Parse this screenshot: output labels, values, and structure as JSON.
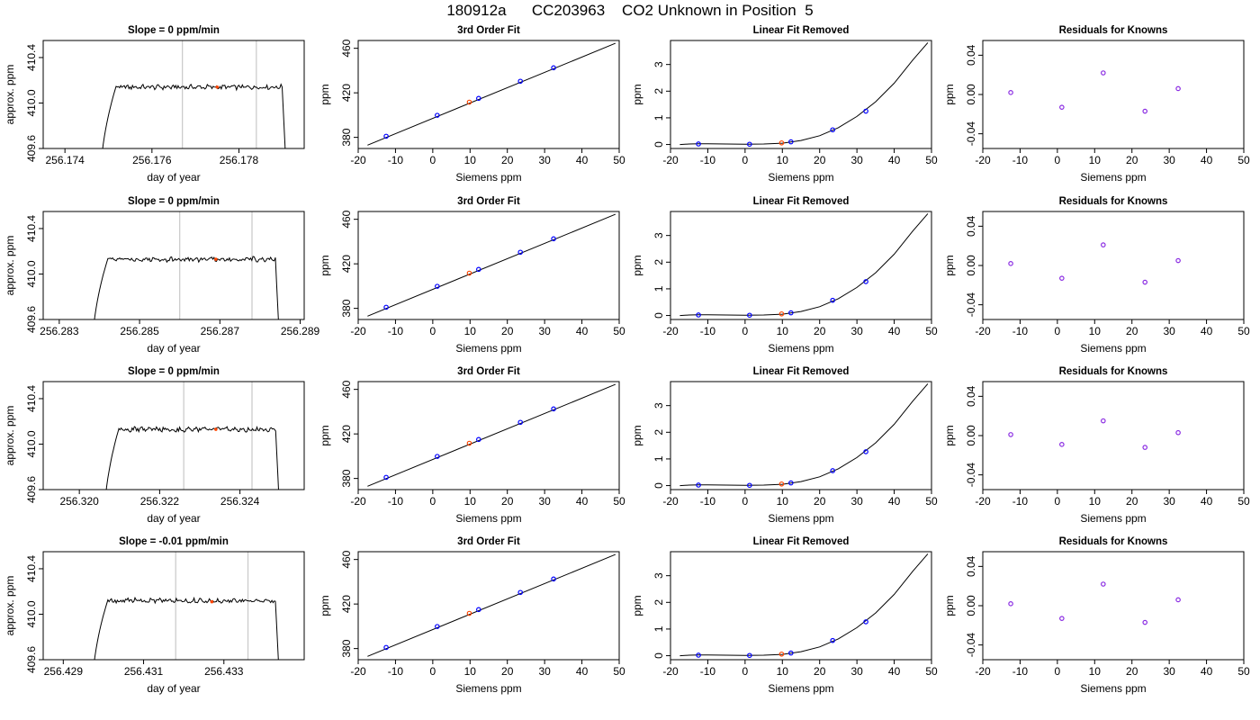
{
  "page_title": "180912a      CC203963    CO2 Unknown in Position  5",
  "chart_data": [
    {
      "type": "line",
      "title": "Slope =  0  ppm/min",
      "xlabel": "day of year",
      "ylabel": "approx. ppm",
      "xlim": [
        256.1735,
        256.1795
      ],
      "ylim": [
        409.6,
        410.55
      ],
      "xticks": [
        256.174,
        256.176,
        256.178
      ],
      "xticklabels": [
        "256.174",
        "256.176",
        "256.178"
      ],
      "yticks": [
        409.6,
        410.0,
        410.4
      ],
      "yticklabels": [
        "409.6",
        "410.0",
        "410.4"
      ],
      "start": 256.1748,
      "end": 256.1791,
      "plateau": 410.14,
      "vlines": [
        256.1767,
        256.1784
      ],
      "marker": {
        "x": 256.1775,
        "y": 410.14
      }
    },
    {
      "type": "line",
      "title": "3rd Order Fit",
      "xlabel": "Siemens ppm",
      "ylabel": "ppm",
      "xlim": [
        -20,
        50
      ],
      "ylim": [
        370,
        467
      ],
      "xticks": [
        -20,
        -10,
        0,
        10,
        20,
        30,
        40,
        50
      ],
      "yticks": [
        380,
        420,
        460
      ],
      "line": {
        "x": [
          -17.5,
          49
        ],
        "y": [
          373,
          464.5
        ]
      },
      "knowns": {
        "x": [
          -12.5,
          1.2,
          12.3,
          23.5,
          32.4
        ],
        "y": [
          381.0,
          399.8,
          415.0,
          430.4,
          442.5
        ]
      },
      "unknown": {
        "x": [
          9.8
        ],
        "y": [
          411.6
        ]
      }
    },
    {
      "type": "line",
      "title": "Linear Fit Removed",
      "xlabel": "Siemens ppm",
      "ylabel": "ppm",
      "xlim": [
        -20,
        50
      ],
      "ylim": [
        -0.15,
        3.9
      ],
      "xticks": [
        -20,
        -10,
        0,
        10,
        20,
        30,
        40,
        50
      ],
      "yticks": [
        0,
        1,
        2,
        3
      ],
      "curve": {
        "x": [
          -17.5,
          -15,
          -12.5,
          -10,
          -5,
          0,
          5,
          10,
          15,
          20,
          25,
          30,
          35,
          40,
          45,
          49
        ],
        "y": [
          0.0,
          0.02,
          0.03,
          0.03,
          0.02,
          0.01,
          0.02,
          0.05,
          0.15,
          0.33,
          0.63,
          1.05,
          1.6,
          2.3,
          3.17,
          3.82
        ]
      },
      "knowns": {
        "x": [
          -12.5,
          1.2,
          12.3,
          23.5,
          32.4
        ],
        "y": [
          0.02,
          0.01,
          0.1,
          0.55,
          1.25
        ]
      },
      "unknown": {
        "x": [
          9.8
        ],
        "y": [
          0.06
        ]
      }
    },
    {
      "type": "scatter",
      "title": "Residuals for Knowns",
      "xlabel": "Siemens ppm",
      "ylabel": "ppm",
      "xlim": [
        -20,
        50
      ],
      "ylim": [
        -0.055,
        0.055
      ],
      "xticks": [
        -20,
        -10,
        0,
        10,
        20,
        30,
        40,
        50
      ],
      "yticks": [
        -0.04,
        0.0,
        0.04
      ],
      "yticklabels": [
        "-0.04",
        "0.00",
        "0.04"
      ],
      "knowns": {
        "x": [
          -12.5,
          1.2,
          12.3,
          23.5,
          32.4
        ],
        "y": [
          0.002,
          -0.013,
          0.022,
          -0.017,
          0.006
        ]
      }
    },
    {
      "type": "line",
      "title": "Slope =  0  ppm/min",
      "xlabel": "day of year",
      "ylabel": "approx. ppm",
      "xlim": [
        256.2826,
        256.2891
      ],
      "ylim": [
        409.6,
        410.55
      ],
      "xticks": [
        256.283,
        256.285,
        256.287,
        256.289
      ],
      "xticklabels": [
        "256.283",
        "256.285",
        "256.287",
        "256.289"
      ],
      "yticks": [
        409.6,
        410.0,
        410.4
      ],
      "yticklabels": [
        "409.6",
        "410.0",
        "410.4"
      ],
      "start": 256.2838,
      "end": 256.2885,
      "plateau": 410.13,
      "vlines": [
        256.286,
        256.2878
      ],
      "marker": {
        "x": 256.2869,
        "y": 410.13
      }
    },
    {
      "type": "line",
      "title": "3rd Order Fit",
      "xlabel": "Siemens ppm",
      "ylabel": "ppm",
      "xlim": [
        -20,
        50
      ],
      "ylim": [
        370,
        467
      ],
      "xticks": [
        -20,
        -10,
        0,
        10,
        20,
        30,
        40,
        50
      ],
      "yticks": [
        380,
        420,
        460
      ],
      "line": {
        "x": [
          -17.5,
          49
        ],
        "y": [
          373,
          464.5
        ]
      },
      "knowns": {
        "x": [
          -12.5,
          1.2,
          12.3,
          23.5,
          32.4
        ],
        "y": [
          381.0,
          399.8,
          415.0,
          430.4,
          442.5
        ]
      },
      "unknown": {
        "x": [
          9.8
        ],
        "y": [
          411.6
        ]
      }
    },
    {
      "type": "line",
      "title": "Linear Fit Removed",
      "xlabel": "Siemens ppm",
      "ylabel": "ppm",
      "xlim": [
        -20,
        50
      ],
      "ylim": [
        -0.15,
        3.9
      ],
      "xticks": [
        -20,
        -10,
        0,
        10,
        20,
        30,
        40,
        50
      ],
      "yticks": [
        0,
        1,
        2,
        3
      ],
      "curve": {
        "x": [
          -17.5,
          -15,
          -12.5,
          -10,
          -5,
          0,
          5,
          10,
          15,
          20,
          25,
          30,
          35,
          40,
          45,
          49
        ],
        "y": [
          0.0,
          0.02,
          0.03,
          0.03,
          0.02,
          0.01,
          0.02,
          0.05,
          0.15,
          0.33,
          0.63,
          1.05,
          1.6,
          2.3,
          3.17,
          3.82
        ]
      },
      "knowns": {
        "x": [
          -12.5,
          1.2,
          12.3,
          23.5,
          32.4
        ],
        "y": [
          0.02,
          0.01,
          0.1,
          0.57,
          1.27
        ]
      },
      "unknown": {
        "x": [
          9.8
        ],
        "y": [
          0.06
        ]
      }
    },
    {
      "type": "scatter",
      "title": "Residuals for Knowns",
      "xlabel": "Siemens ppm",
      "ylabel": "ppm",
      "xlim": [
        -20,
        50
      ],
      "ylim": [
        -0.055,
        0.055
      ],
      "xticks": [
        -20,
        -10,
        0,
        10,
        20,
        30,
        40,
        50
      ],
      "yticks": [
        -0.04,
        0.0,
        0.04
      ],
      "yticklabels": [
        "-0.04",
        "0.00",
        "0.04"
      ],
      "knowns": {
        "x": [
          -12.5,
          1.2,
          12.3,
          23.5,
          32.4
        ],
        "y": [
          0.002,
          -0.013,
          0.021,
          -0.017,
          0.005
        ]
      }
    },
    {
      "type": "line",
      "title": "Slope =  0  ppm/min",
      "xlabel": "day of year",
      "ylabel": "approx. ppm",
      "xlim": [
        256.3191,
        256.3256
      ],
      "ylim": [
        409.6,
        410.55
      ],
      "xticks": [
        256.32,
        256.322,
        256.324
      ],
      "xticklabels": [
        "256.320",
        "256.322",
        "256.324"
      ],
      "yticks": [
        409.6,
        410.0,
        410.4
      ],
      "yticklabels": [
        "409.6",
        "410.0",
        "410.4"
      ],
      "start": 256.3206,
      "end": 256.325,
      "plateau": 410.13,
      "vlines": [
        256.3226,
        256.3243
      ],
      "marker": {
        "x": 256.3234,
        "y": 410.13
      }
    },
    {
      "type": "line",
      "title": "3rd Order Fit",
      "xlabel": "Siemens ppm",
      "ylabel": "ppm",
      "xlim": [
        -20,
        50
      ],
      "ylim": [
        370,
        467
      ],
      "xticks": [
        -20,
        -10,
        0,
        10,
        20,
        30,
        40,
        50
      ],
      "yticks": [
        380,
        420,
        460
      ],
      "line": {
        "x": [
          -17.5,
          49
        ],
        "y": [
          373,
          464.5
        ]
      },
      "knowns": {
        "x": [
          -12.5,
          1.2,
          12.3,
          23.5,
          32.4
        ],
        "y": [
          381.0,
          399.8,
          415.0,
          430.4,
          442.5
        ]
      },
      "unknown": {
        "x": [
          9.8
        ],
        "y": [
          411.6
        ]
      }
    },
    {
      "type": "line",
      "title": "Linear Fit Removed",
      "xlabel": "Siemens ppm",
      "ylabel": "ppm",
      "xlim": [
        -20,
        50
      ],
      "ylim": [
        -0.15,
        3.9
      ],
      "xticks": [
        -20,
        -10,
        0,
        10,
        20,
        30,
        40,
        50
      ],
      "yticks": [
        0,
        1,
        2,
        3
      ],
      "curve": {
        "x": [
          -17.5,
          -15,
          -12.5,
          -10,
          -5,
          0,
          5,
          10,
          15,
          20,
          25,
          30,
          35,
          40,
          45,
          49
        ],
        "y": [
          0.0,
          0.02,
          0.03,
          0.03,
          0.02,
          0.01,
          0.02,
          0.05,
          0.15,
          0.33,
          0.63,
          1.05,
          1.6,
          2.3,
          3.17,
          3.82
        ]
      },
      "knowns": {
        "x": [
          -12.5,
          1.2,
          12.3,
          23.5,
          32.4
        ],
        "y": [
          0.02,
          0.01,
          0.1,
          0.56,
          1.27
        ]
      },
      "unknown": {
        "x": [
          9.8
        ],
        "y": [
          0.06
        ]
      }
    },
    {
      "type": "scatter",
      "title": "Residuals for Knowns",
      "xlabel": "Siemens ppm",
      "ylabel": "ppm",
      "xlim": [
        -20,
        50
      ],
      "ylim": [
        -0.055,
        0.055
      ],
      "xticks": [
        -20,
        -10,
        0,
        10,
        20,
        30,
        40,
        50
      ],
      "yticks": [
        -0.04,
        0.0,
        0.04
      ],
      "yticklabels": [
        "-0.04",
        "0.00",
        "0.04"
      ],
      "knowns": {
        "x": [
          -12.5,
          1.2,
          12.3,
          23.5,
          32.4
        ],
        "y": [
          0.001,
          -0.009,
          0.015,
          -0.012,
          0.003
        ]
      }
    },
    {
      "type": "line",
      "title": "Slope =  -0.01  ppm/min",
      "xlabel": "day of year",
      "ylabel": "approx. ppm",
      "xlim": [
        256.4285,
        256.435
      ],
      "ylim": [
        409.6,
        410.55
      ],
      "xticks": [
        256.429,
        256.431,
        256.433
      ],
      "xticklabels": [
        "256.429",
        "256.431",
        "256.433"
      ],
      "yticks": [
        409.6,
        410.0,
        410.4
      ],
      "yticklabels": [
        "409.6",
        "410.0",
        "410.4"
      ],
      "start": 256.4297,
      "end": 256.4344,
      "plateau": 410.12,
      "vlines": [
        256.4318,
        256.4336
      ],
      "marker": {
        "x": 256.4327,
        "y": 410.11
      }
    },
    {
      "type": "line",
      "title": "3rd Order Fit",
      "xlabel": "Siemens ppm",
      "ylabel": "ppm",
      "xlim": [
        -20,
        50
      ],
      "ylim": [
        370,
        467
      ],
      "xticks": [
        -20,
        -10,
        0,
        10,
        20,
        30,
        40,
        50
      ],
      "yticks": [
        380,
        420,
        460
      ],
      "line": {
        "x": [
          -17.5,
          49
        ],
        "y": [
          373,
          464.5
        ]
      },
      "knowns": {
        "x": [
          -12.5,
          1.2,
          12.3,
          23.5,
          32.4
        ],
        "y": [
          381.0,
          399.8,
          415.0,
          430.4,
          442.5
        ]
      },
      "unknown": {
        "x": [
          9.8
        ],
        "y": [
          411.6
        ]
      }
    },
    {
      "type": "line",
      "title": "Linear Fit Removed",
      "xlabel": "Siemens ppm",
      "ylabel": "ppm",
      "xlim": [
        -20,
        50
      ],
      "ylim": [
        -0.15,
        3.9
      ],
      "xticks": [
        -20,
        -10,
        0,
        10,
        20,
        30,
        40,
        50
      ],
      "yticks": [
        0,
        1,
        2,
        3
      ],
      "curve": {
        "x": [
          -17.5,
          -15,
          -12.5,
          -10,
          -5,
          0,
          5,
          10,
          15,
          20,
          25,
          30,
          35,
          40,
          45,
          49
        ],
        "y": [
          0.0,
          0.02,
          0.03,
          0.03,
          0.02,
          0.01,
          0.02,
          0.05,
          0.15,
          0.33,
          0.63,
          1.05,
          1.6,
          2.3,
          3.17,
          3.82
        ]
      },
      "knowns": {
        "x": [
          -12.5,
          1.2,
          12.3,
          23.5,
          32.4
        ],
        "y": [
          0.02,
          0.01,
          0.1,
          0.57,
          1.27
        ]
      },
      "unknown": {
        "x": [
          9.8
        ],
        "y": [
          0.06
        ]
      }
    },
    {
      "type": "scatter",
      "title": "Residuals for Knowns",
      "xlabel": "Siemens ppm",
      "ylabel": "ppm",
      "xlim": [
        -20,
        50
      ],
      "ylim": [
        -0.055,
        0.055
      ],
      "xticks": [
        -20,
        -10,
        0,
        10,
        20,
        30,
        40,
        50
      ],
      "yticks": [
        -0.04,
        0.0,
        0.04
      ],
      "yticklabels": [
        "-0.04",
        "0.00",
        "0.04"
      ],
      "knowns": {
        "x": [
          -12.5,
          1.2,
          12.3,
          23.5,
          32.4
        ],
        "y": [
          0.002,
          -0.013,
          0.022,
          -0.017,
          0.006
        ]
      }
    }
  ],
  "colors": {
    "axis": "#000000",
    "curve": "#000000",
    "vline": "#c8c8c8",
    "known": "#0000ff",
    "unknown": "#ff4500",
    "residual": "#8a2be2"
  }
}
